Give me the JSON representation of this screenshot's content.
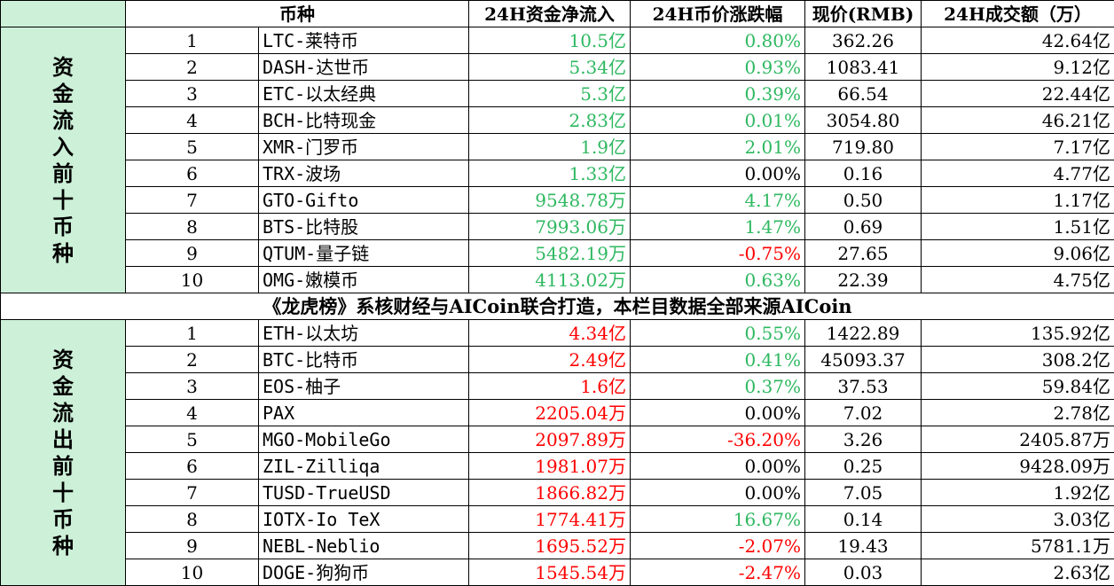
{
  "header": {
    "col_coin": "币种",
    "col_inflow": "24H资金净流入",
    "col_change": "24H币价涨跌幅",
    "col_price": "现价(RMB)",
    "col_volume": "24H成交额（万）"
  },
  "section_in": {
    "label": "资金流入前十币种",
    "rows": [
      {
        "rank": "1",
        "coin": "LTC-莱特币",
        "flow": "10.5亿",
        "change": "0.80%",
        "change_color": "green",
        "price": "362.26",
        "volume": "42.64亿"
      },
      {
        "rank": "2",
        "coin": "DASH-达世币",
        "flow": "5.34亿",
        "change": "0.93%",
        "change_color": "green",
        "price": "1083.41",
        "volume": "9.12亿"
      },
      {
        "rank": "3",
        "coin": "ETC-以太经典",
        "flow": "5.3亿",
        "change": "0.39%",
        "change_color": "green",
        "price": "66.54",
        "volume": "22.44亿"
      },
      {
        "rank": "4",
        "coin": "BCH-比特现金",
        "flow": "2.83亿",
        "change": "0.01%",
        "change_color": "green",
        "price": "3054.80",
        "volume": "46.21亿"
      },
      {
        "rank": "5",
        "coin": "XMR-门罗币",
        "flow": "1.9亿",
        "change": "2.01%",
        "change_color": "green",
        "price": "719.80",
        "volume": "7.17亿"
      },
      {
        "rank": "6",
        "coin": "TRX-波场",
        "flow": "1.33亿",
        "change": "0.00%",
        "change_color": "black",
        "price": "0.16",
        "volume": "4.77亿"
      },
      {
        "rank": "7",
        "coin": "GTO-Gifto",
        "flow": "9548.78万",
        "change": "4.17%",
        "change_color": "green",
        "price": "0.50",
        "volume": "1.17亿"
      },
      {
        "rank": "8",
        "coin": "BTS-比特股",
        "flow": "7993.06万",
        "change": "1.47%",
        "change_color": "green",
        "price": "0.69",
        "volume": "1.51亿"
      },
      {
        "rank": "9",
        "coin": "QTUM-量子链",
        "flow": "5482.19万",
        "change": "-0.75%",
        "change_color": "red",
        "price": "27.65",
        "volume": "9.06亿"
      },
      {
        "rank": "10",
        "coin": "OMG-嫩模币",
        "flow": "4113.02万",
        "change": "0.63%",
        "change_color": "green",
        "price": "22.39",
        "volume": "4.75亿"
      }
    ]
  },
  "banner": "《龙虎榜》系核财经与AICoin联合打造，本栏目数据全部来源AICoin",
  "section_out": {
    "label": "资金流出前十币种",
    "rows": [
      {
        "rank": "1",
        "coin": "ETH-以太坊",
        "flow": "4.34亿",
        "change": "0.55%",
        "change_color": "green",
        "price": "1422.89",
        "volume": "135.92亿"
      },
      {
        "rank": "2",
        "coin": "BTC-比特币",
        "flow": "2.49亿",
        "change": "0.41%",
        "change_color": "green",
        "price": "45093.37",
        "volume": "308.2亿"
      },
      {
        "rank": "3",
        "coin": "EOS-柚子",
        "flow": "1.6亿",
        "change": "0.37%",
        "change_color": "green",
        "price": "37.53",
        "volume": "59.84亿"
      },
      {
        "rank": "4",
        "coin": "PAX",
        "flow": "2205.04万",
        "change": "0.00%",
        "change_color": "black",
        "price": "7.02",
        "volume": "2.78亿"
      },
      {
        "rank": "5",
        "coin": "MGO-MobileGo",
        "flow": "2097.89万",
        "change": "-36.20%",
        "change_color": "red",
        "price": "3.26",
        "volume": "2405.87万"
      },
      {
        "rank": "6",
        "coin": "ZIL-Zilliqa",
        "flow": "1981.07万",
        "change": "0.00%",
        "change_color": "black",
        "price": "0.25",
        "volume": "9428.09万"
      },
      {
        "rank": "7",
        "coin": "TUSD-TrueUSD",
        "flow": "1866.82万",
        "change": "0.00%",
        "change_color": "black",
        "price": "7.05",
        "volume": "1.92亿"
      },
      {
        "rank": "8",
        "coin": "IOTX-Io TeX",
        "flow": "1774.41万",
        "change": "16.67%",
        "change_color": "green",
        "price": "0.14",
        "volume": "3.03亿"
      },
      {
        "rank": "9",
        "coin": "NEBL-Neblio",
        "flow": "1695.52万",
        "change": "-2.07%",
        "change_color": "red",
        "price": "19.43",
        "volume": "5781.1万"
      },
      {
        "rank": "10",
        "coin": "DOGE-狗狗币",
        "flow": "1545.54万",
        "change": "-2.47%",
        "change_color": "red",
        "price": "0.03",
        "volume": "2.63亿"
      }
    ]
  },
  "colors": {
    "green": "#2eb860",
    "red": "#ff0000",
    "side_bg": "#ccf0d8"
  }
}
